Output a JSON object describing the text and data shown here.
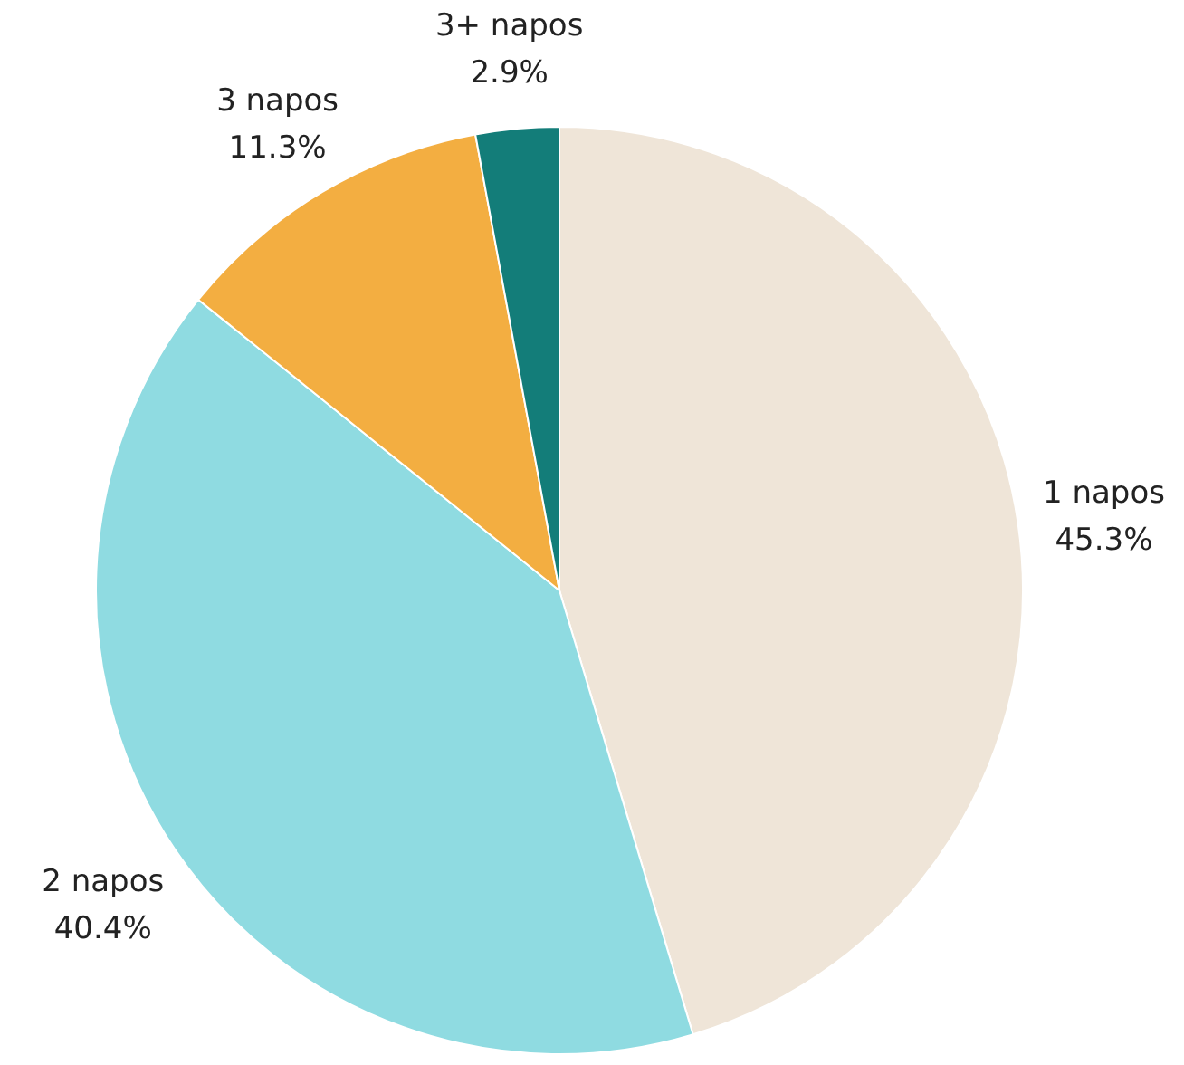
{
  "chart_data": {
    "type": "pie",
    "categories": [
      "1 napos",
      "2 napos",
      "3 napos",
      "3+ napos"
    ],
    "values": [
      45.3,
      40.4,
      11.3,
      2.9
    ],
    "value_labels": [
      "45.3%",
      "40.4%",
      "11.3%",
      "2.9%"
    ],
    "colors": [
      "#efe5d8",
      "#8fdbe1",
      "#f3ae41",
      "#137d79"
    ]
  }
}
